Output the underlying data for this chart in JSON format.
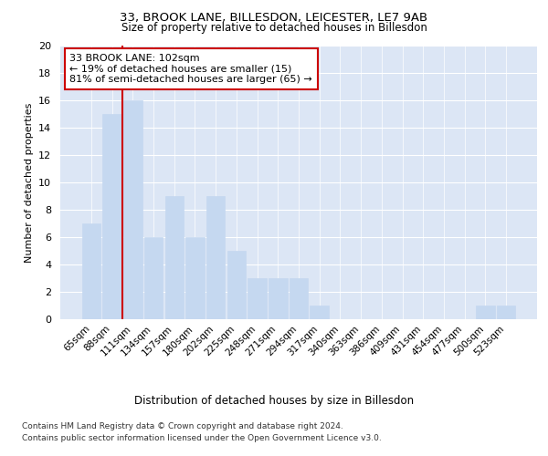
{
  "title1": "33, BROOK LANE, BILLESDON, LEICESTER, LE7 9AB",
  "title2": "Size of property relative to detached houses in Billesdon",
  "xlabel": "Distribution of detached houses by size in Billesdon",
  "ylabel": "Number of detached properties",
  "categories": [
    "65sqm",
    "88sqm",
    "111sqm",
    "134sqm",
    "157sqm",
    "180sqm",
    "202sqm",
    "225sqm",
    "248sqm",
    "271sqm",
    "294sqm",
    "317sqm",
    "340sqm",
    "363sqm",
    "386sqm",
    "409sqm",
    "431sqm",
    "454sqm",
    "477sqm",
    "500sqm",
    "523sqm"
  ],
  "values": [
    7,
    15,
    16,
    6,
    9,
    6,
    9,
    5,
    3,
    3,
    3,
    1,
    0,
    0,
    0,
    0,
    0,
    0,
    0,
    1,
    1
  ],
  "bar_color": "#c5d8f0",
  "bar_edge_color": "#c5d8f0",
  "vline_color": "#cc0000",
  "annotation_text": "33 BROOK LANE: 102sqm\n← 19% of detached houses are smaller (15)\n81% of semi-detached houses are larger (65) →",
  "annotation_box_color": "#cc0000",
  "ylim": [
    0,
    20
  ],
  "yticks": [
    0,
    2,
    4,
    6,
    8,
    10,
    12,
    14,
    16,
    18,
    20
  ],
  "background_color": "#dce6f5",
  "footer1": "Contains HM Land Registry data © Crown copyright and database right 2024.",
  "footer2": "Contains public sector information licensed under the Open Government Licence v3.0."
}
